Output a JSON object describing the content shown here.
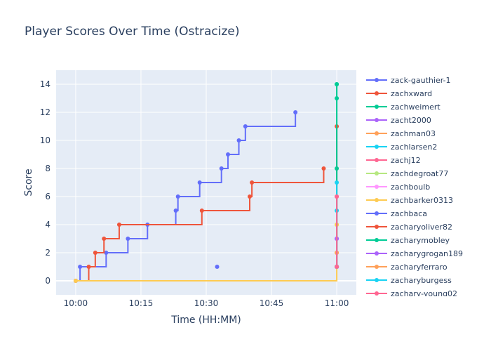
{
  "chart_data": {
    "type": "line",
    "line_shape": "step",
    "title": "Player Scores Over Time (Ostracize)",
    "xlabel": "Time (HH:MM)",
    "ylabel": "Score",
    "x_ticks": [
      "10:00",
      "10:15",
      "10:30",
      "10:45",
      "11:00"
    ],
    "x_tick_minutes": [
      0,
      15,
      30,
      45,
      60
    ],
    "xlim_minutes": [
      -4.5,
      64.5
    ],
    "y_ticks": [
      0,
      2,
      4,
      6,
      8,
      10,
      12,
      14
    ],
    "ylim": [
      -1,
      15
    ],
    "grid": true,
    "legend_position": "right",
    "series": [
      {
        "name": "zack-gauthier-1",
        "color": "#636efa",
        "x": [
          0,
          1,
          7,
          12,
          16.5,
          23,
          23.5,
          28.5,
          33.5,
          35,
          37.5,
          39,
          50.5
        ],
        "y": [
          0,
          1,
          2,
          3,
          4,
          5,
          6,
          7,
          8,
          9,
          10,
          11,
          12
        ]
      },
      {
        "name": "zachxward",
        "color": "#ef553b",
        "x": [
          0,
          3,
          4.5,
          6.5,
          10,
          29,
          40,
          40.5,
          57
        ],
        "y": [
          0,
          1,
          2,
          3,
          4,
          5,
          6,
          7,
          8
        ]
      },
      {
        "name": "zachweimert",
        "color": "#00cc96",
        "x": [
          60,
          60,
          60,
          60
        ],
        "y": [
          1,
          8,
          13,
          14
        ]
      },
      {
        "name": "zacht2000",
        "color": "#ab63fa",
        "x": [
          60,
          60
        ],
        "y": [
          1,
          3
        ]
      },
      {
        "name": "zachman03",
        "color": "#ffa15a",
        "x": [
          60,
          60
        ],
        "y": [
          1,
          2
        ]
      },
      {
        "name": "zachlarsen2",
        "color": "#19d3f3",
        "x": [
          60,
          60
        ],
        "y": [
          1,
          5
        ]
      },
      {
        "name": "zachj12",
        "color": "#ff6692",
        "x": [
          60,
          60
        ],
        "y": [
          1,
          6
        ]
      },
      {
        "name": "zachdegroat77",
        "color": "#b6e880",
        "x": [
          60,
          60
        ],
        "y": [
          1,
          4
        ]
      },
      {
        "name": "zachboulb",
        "color": "#ff97ff",
        "x": [
          60,
          60
        ],
        "y": [
          1,
          3
        ]
      },
      {
        "name": "zachbarker0313",
        "color": "#fecb52",
        "x": [
          0,
          60,
          60
        ],
        "y": [
          0,
          1,
          4
        ]
      },
      {
        "name": "zachbaca",
        "color": "#636efa",
        "x": [
          32.5
        ],
        "y": [
          1
        ]
      },
      {
        "name": "zacharyoliver82",
        "color": "#ef553b",
        "x": [
          60,
          60
        ],
        "y": [
          1,
          11
        ]
      },
      {
        "name": "zacharymobley",
        "color": "#00cc96",
        "x": [
          60,
          60
        ],
        "y": [
          1,
          14
        ]
      },
      {
        "name": "zacharygrogan189",
        "color": "#ab63fa",
        "x": [
          60,
          60
        ],
        "y": [
          1,
          3
        ]
      },
      {
        "name": "zacharyferraro",
        "color": "#ffa15a",
        "x": [
          60,
          60
        ],
        "y": [
          1,
          2
        ]
      },
      {
        "name": "zacharyburgess",
        "color": "#19d3f3",
        "x": [
          60,
          60
        ],
        "y": [
          1,
          7
        ]
      },
      {
        "name": "zachary-young02",
        "color": "#ff6692",
        "x": [
          60,
          60
        ],
        "y": [
          1,
          6
        ]
      }
    ]
  }
}
